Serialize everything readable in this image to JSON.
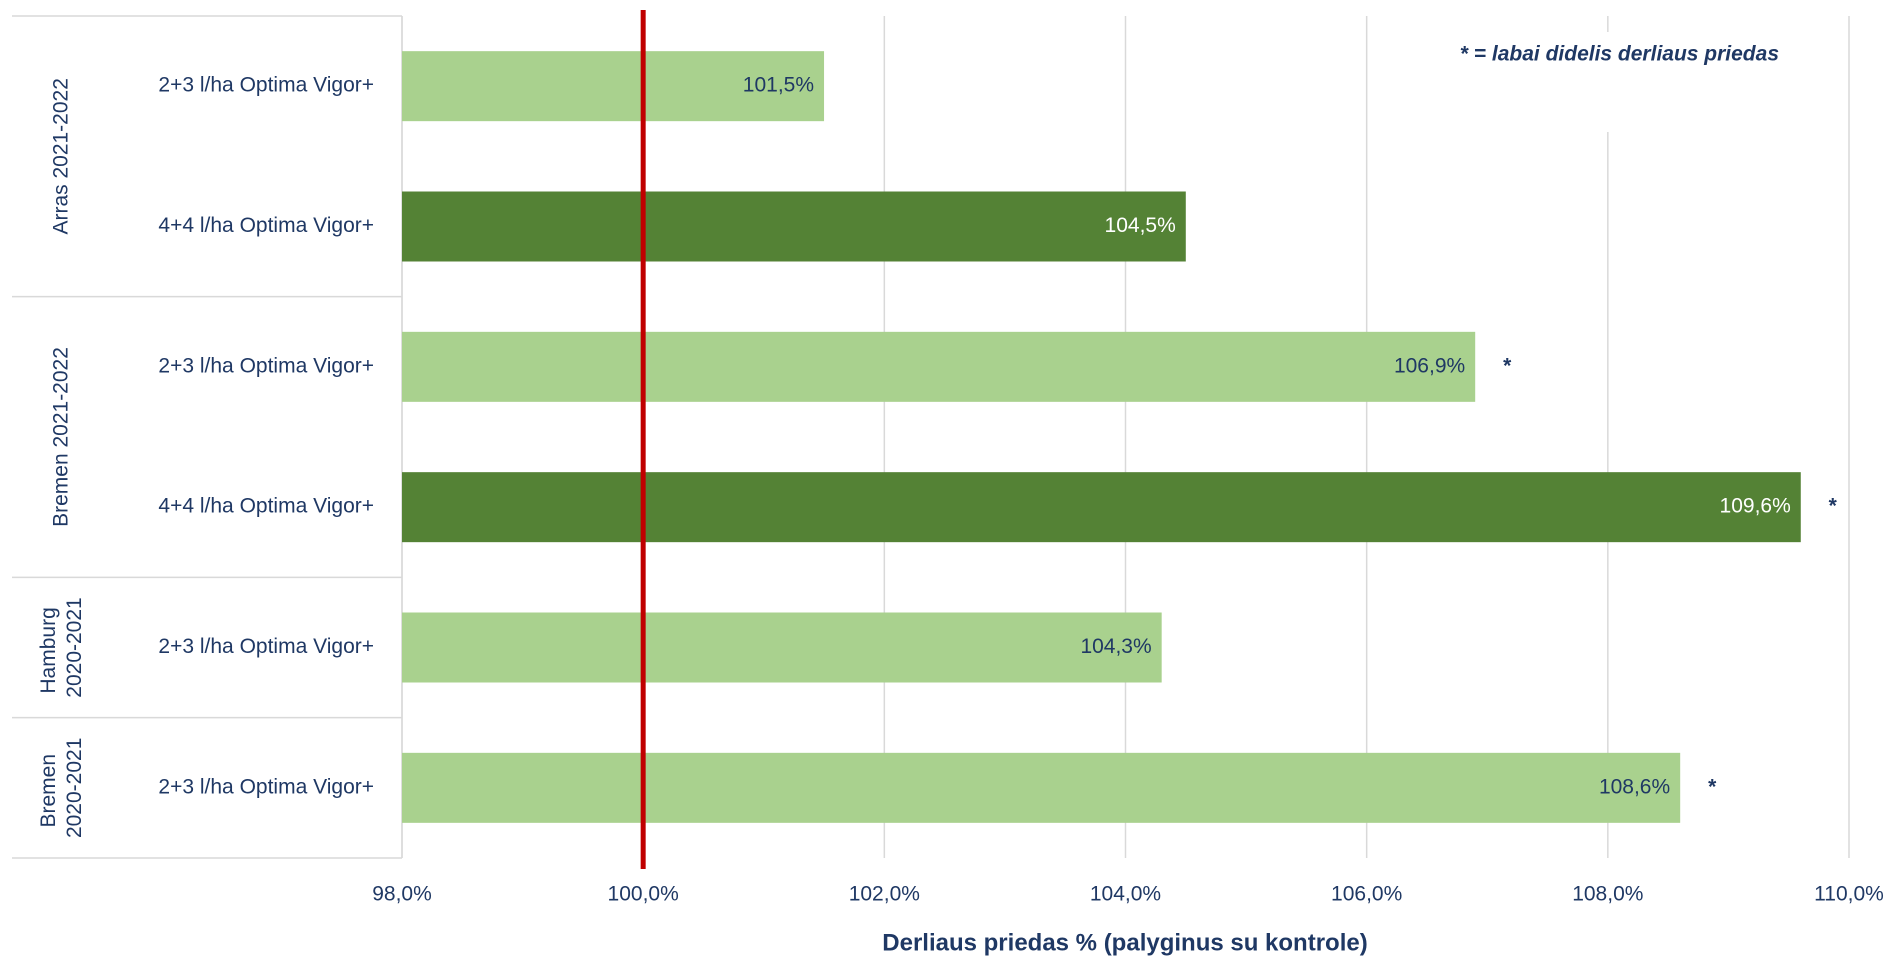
{
  "chart_data": {
    "type": "bar",
    "orientation": "horizontal",
    "categories": [
      "2+3 l/ha Optima Vigor+",
      "4+4 l/ha Optima Vigor+",
      "2+3 l/ha Optima Vigor+",
      "4+4 l/ha Optima Vigor+",
      "2+3 l/ha Optima Vigor+",
      "2+3 l/ha Optima Vigor+"
    ],
    "category_groups": [
      "Arras 2021-2022",
      "Arras 2021-2022",
      "Bremen 2021-2022",
      "Bremen 2021-2022",
      "Hamburg 2020-2021",
      "Bremen 2020-2021"
    ],
    "values": [
      101.5,
      104.5,
      106.9,
      109.6,
      104.3,
      108.6
    ],
    "value_labels": [
      "101,5%",
      "104,5%",
      "106,9%",
      "109,6%",
      "104,3%",
      "108,6%"
    ],
    "colors": [
      "#a9d18e",
      "#548235",
      "#a9d18e",
      "#548235",
      "#a9d18e",
      "#a9d18e"
    ],
    "markers": [
      null,
      null,
      "*",
      "*",
      null,
      "*"
    ],
    "xlim": [
      98,
      110
    ],
    "xticks": [
      {
        "value": 98,
        "label": "98,0%"
      },
      {
        "value": 100,
        "label": "100,0%"
      },
      {
        "value": 102,
        "label": "102,0%"
      },
      {
        "value": 104,
        "label": "104,0%"
      },
      {
        "value": 106,
        "label": "106,0%"
      },
      {
        "value": 108,
        "label": "108,0%"
      },
      {
        "value": 110,
        "label": "110,0%"
      }
    ],
    "grid": true,
    "reference_line": {
      "value": 100,
      "color": "#c00000"
    },
    "xlabel": "Derliaus priedas % (palyginus su kontrole)",
    "note": "* = labai didelis derliaus priedas"
  }
}
